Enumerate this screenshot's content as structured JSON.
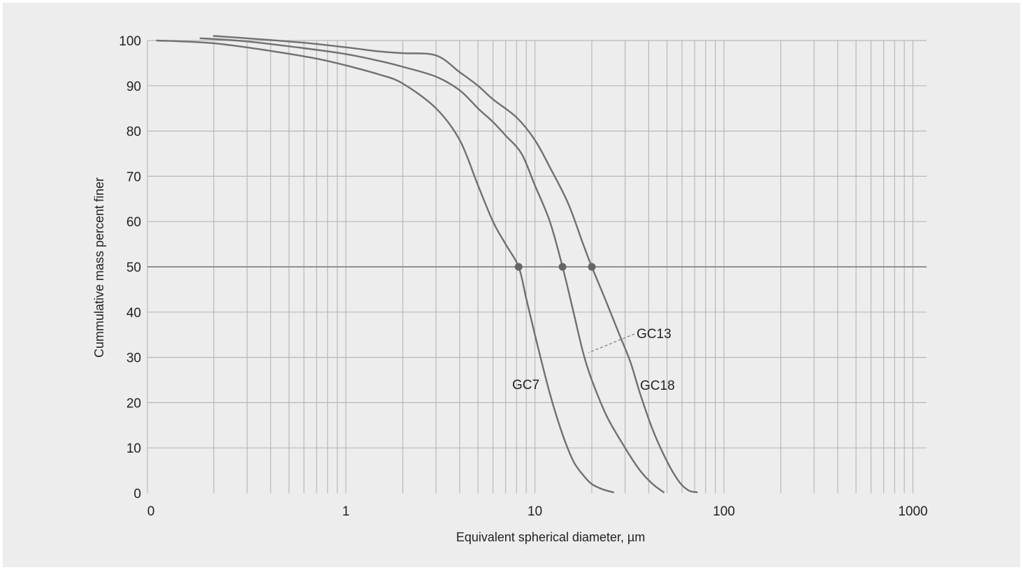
{
  "chart_data": {
    "type": "line",
    "xlabel": "Equivalent spherical diameter, µm",
    "ylabel": "Cummulative mass percent finer",
    "x_scale": "log",
    "xlim": [
      0.1,
      1100
    ],
    "ylim": [
      0,
      100
    ],
    "x_ticks": [
      {
        "value": 0.1,
        "label": "0"
      },
      {
        "value": 1,
        "label": "1"
      },
      {
        "value": 10,
        "label": "10"
      },
      {
        "value": 100,
        "label": "100"
      },
      {
        "value": 1000,
        "label": "1000"
      }
    ],
    "y_ticks": [
      0,
      10,
      20,
      30,
      40,
      50,
      60,
      70,
      80,
      90,
      100
    ],
    "grid": true,
    "reference_line": {
      "y": 50
    },
    "line_color": "#707070",
    "grid_color": "#b8b8b8",
    "series": [
      {
        "name": "GC7",
        "points": [
          [
            0.1,
            100
          ],
          [
            0.2,
            99.4
          ],
          [
            0.4,
            97.7
          ],
          [
            0.7,
            96
          ],
          [
            1,
            94.5
          ],
          [
            1.5,
            92.5
          ],
          [
            2,
            90.5
          ],
          [
            3,
            85
          ],
          [
            4,
            78
          ],
          [
            5,
            68
          ],
          [
            6,
            60
          ],
          [
            7,
            55
          ],
          [
            8.2,
            50
          ],
          [
            9,
            43
          ],
          [
            10,
            35
          ],
          [
            12,
            22
          ],
          [
            14,
            13
          ],
          [
            16,
            7
          ],
          [
            18,
            4
          ],
          [
            20,
            2
          ],
          [
            23,
            0.8
          ],
          [
            26,
            0.2
          ]
        ]
      },
      {
        "name": "GC13",
        "points": [
          [
            0.17,
            100.5
          ],
          [
            0.3,
            99.8
          ],
          [
            0.6,
            98.3
          ],
          [
            1,
            97
          ],
          [
            1.5,
            95.5
          ],
          [
            2,
            94.2
          ],
          [
            3,
            92
          ],
          [
            4,
            89
          ],
          [
            5,
            85
          ],
          [
            6,
            82
          ],
          [
            7,
            79
          ],
          [
            8.5,
            75
          ],
          [
            10,
            68
          ],
          [
            12,
            60
          ],
          [
            14,
            50
          ],
          [
            16,
            40
          ],
          [
            18,
            31
          ],
          [
            20,
            25
          ],
          [
            24,
            17
          ],
          [
            30,
            10
          ],
          [
            36,
            5
          ],
          [
            42,
            2
          ],
          [
            48,
            0.2
          ]
        ]
      },
      {
        "name": "GC18",
        "points": [
          [
            0.2,
            101
          ],
          [
            0.3,
            100.5
          ],
          [
            0.6,
            99.5
          ],
          [
            1,
            98.5
          ],
          [
            1.5,
            97.6
          ],
          [
            2,
            97.2
          ],
          [
            3,
            96.7
          ],
          [
            4,
            93
          ],
          [
            5,
            90
          ],
          [
            6,
            87
          ],
          [
            8,
            83
          ],
          [
            10,
            78
          ],
          [
            12,
            72
          ],
          [
            15,
            64
          ],
          [
            18,
            55
          ],
          [
            20,
            50
          ],
          [
            24,
            42
          ],
          [
            28,
            35
          ],
          [
            32,
            29
          ],
          [
            36,
            22
          ],
          [
            42,
            14
          ],
          [
            50,
            7
          ],
          [
            58,
            2.5
          ],
          [
            65,
            0.6
          ],
          [
            72,
            0.2
          ]
        ]
      }
    ],
    "d50_markers": [
      {
        "series": "GC7",
        "x": 8.2,
        "y": 50
      },
      {
        "series": "GC13",
        "x": 14,
        "y": 50
      },
      {
        "series": "GC18",
        "x": 20,
        "y": 50
      }
    ]
  }
}
